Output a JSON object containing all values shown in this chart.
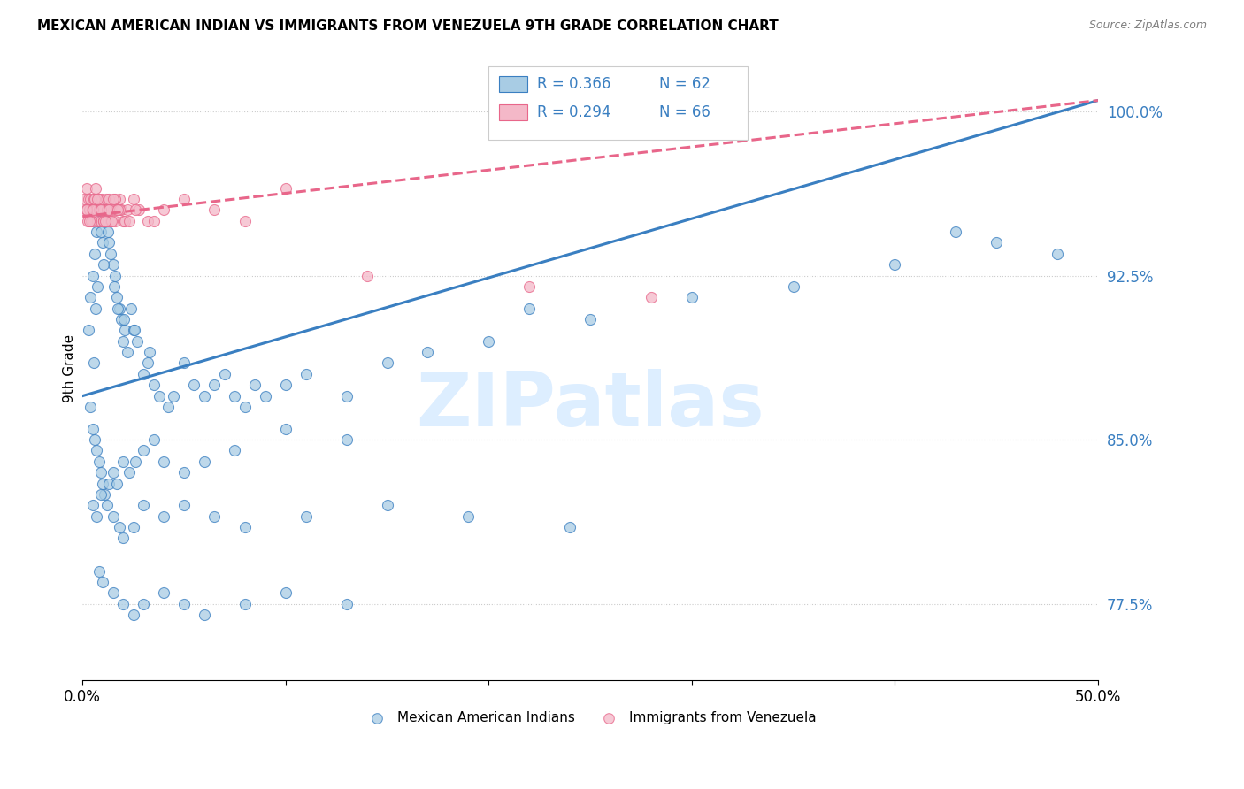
{
  "title": "MEXICAN AMERICAN INDIAN VS IMMIGRANTS FROM VENEZUELA 9TH GRADE CORRELATION CHART",
  "source": "Source: ZipAtlas.com",
  "ylabel": "9th Grade",
  "y_ticks": [
    77.5,
    85.0,
    92.5,
    100.0
  ],
  "y_tick_labels": [
    "77.5%",
    "85.0%",
    "92.5%",
    "100.0%"
  ],
  "x_min": 0.0,
  "x_max": 50.0,
  "y_min": 74.0,
  "y_max": 102.5,
  "legend_r1": "R = 0.366",
  "legend_n1": "N = 62",
  "legend_r2": "R = 0.294",
  "legend_n2": "N = 66",
  "color_blue": "#a8cce4",
  "color_pink": "#f4b8c8",
  "color_blue_line": "#3a7fc1",
  "color_pink_line": "#e8668a",
  "color_blue_text": "#3a7fc1",
  "watermark_text": "ZIPatlas",
  "watermark_color": "#ddeeff",
  "blue_line_x0": 0.0,
  "blue_line_y0": 87.0,
  "blue_line_x1": 50.0,
  "blue_line_y1": 100.5,
  "pink_line_x0": 0.0,
  "pink_line_y0": 95.2,
  "pink_line_x1": 50.0,
  "pink_line_y1": 100.5,
  "blue_x": [
    0.3,
    0.4,
    0.5,
    0.6,
    0.7,
    0.8,
    0.9,
    1.0,
    1.1,
    1.2,
    1.3,
    1.4,
    1.5,
    1.6,
    1.7,
    1.8,
    1.9,
    2.0,
    2.1,
    2.2,
    2.4,
    2.5,
    2.7,
    3.0,
    3.2,
    3.5,
    3.8,
    4.2,
    5.0,
    5.5,
    6.0,
    6.5,
    7.0,
    7.5,
    8.0,
    9.0,
    10.0,
    11.0,
    13.0,
    15.0,
    17.0,
    20.0,
    25.0,
    30.0,
    35.0,
    40.0,
    45.0,
    48.0,
    0.55,
    0.75,
    1.05,
    1.25,
    1.55,
    1.75,
    2.05,
    2.55,
    3.3,
    4.5,
    8.5,
    22.0,
    43.0,
    0.65
  ],
  "blue_y": [
    90.0,
    91.5,
    92.5,
    93.5,
    94.5,
    95.0,
    94.5,
    94.0,
    95.5,
    95.0,
    94.0,
    93.5,
    93.0,
    92.5,
    91.5,
    91.0,
    90.5,
    89.5,
    90.0,
    89.0,
    91.0,
    90.0,
    89.5,
    88.0,
    88.5,
    87.5,
    87.0,
    86.5,
    88.5,
    87.5,
    87.0,
    87.5,
    88.0,
    87.0,
    86.5,
    87.0,
    87.5,
    88.0,
    87.0,
    88.5,
    89.0,
    89.5,
    90.5,
    91.5,
    92.0,
    93.0,
    94.0,
    93.5,
    88.5,
    92.0,
    93.0,
    94.5,
    92.0,
    91.0,
    90.5,
    90.0,
    89.0,
    87.0,
    87.5,
    91.0,
    94.5,
    91.0
  ],
  "blue_low_x": [
    0.4,
    0.5,
    0.6,
    0.7,
    0.8,
    0.9,
    1.0,
    1.1,
    1.3,
    1.5,
    1.7,
    2.0,
    2.3,
    2.6,
    3.0,
    3.5,
    4.0,
    5.0,
    6.0,
    7.5,
    10.0,
    13.0
  ],
  "blue_low_y": [
    86.5,
    85.5,
    85.0,
    84.5,
    84.0,
    83.5,
    83.0,
    82.5,
    83.0,
    83.5,
    83.0,
    84.0,
    83.5,
    84.0,
    84.5,
    85.0,
    84.0,
    83.5,
    84.0,
    84.5,
    85.5,
    85.0
  ],
  "blue_very_low_x": [
    0.5,
    0.7,
    0.9,
    1.2,
    1.5,
    1.8,
    2.0,
    2.5,
    3.0,
    4.0,
    5.0,
    6.5,
    8.0,
    11.0,
    15.0,
    19.0,
    24.0
  ],
  "blue_very_low_y": [
    82.0,
    81.5,
    82.5,
    82.0,
    81.5,
    81.0,
    80.5,
    81.0,
    82.0,
    81.5,
    82.0,
    81.5,
    81.0,
    81.5,
    82.0,
    81.5,
    81.0
  ],
  "blue_lowest_x": [
    0.8,
    1.0,
    1.5,
    2.0,
    2.5,
    3.0,
    4.0,
    5.0,
    6.0,
    8.0,
    10.0,
    13.0
  ],
  "blue_lowest_y": [
    79.0,
    78.5,
    78.0,
    77.5,
    77.0,
    77.5,
    78.0,
    77.5,
    77.0,
    77.5,
    78.0,
    77.5
  ],
  "pink_x": [
    0.1,
    0.15,
    0.2,
    0.25,
    0.3,
    0.35,
    0.4,
    0.45,
    0.5,
    0.55,
    0.6,
    0.65,
    0.7,
    0.75,
    0.8,
    0.85,
    0.9,
    0.95,
    1.0,
    1.05,
    1.1,
    1.15,
    1.2,
    1.25,
    1.3,
    1.35,
    1.4,
    1.5,
    1.6,
    1.7,
    1.8,
    1.9,
    2.0,
    2.2,
    2.5,
    2.8,
    3.2,
    4.0,
    5.0,
    6.5,
    8.0,
    10.0,
    14.0,
    22.0,
    28.0,
    0.22,
    0.42,
    0.62,
    0.82,
    1.02,
    1.22,
    1.42,
    1.62,
    1.82,
    2.1,
    2.6,
    3.5,
    0.32,
    0.52,
    0.72,
    0.92,
    1.12,
    1.32,
    1.52,
    1.72,
    2.3
  ],
  "pink_y": [
    96.0,
    95.5,
    96.5,
    95.0,
    96.0,
    95.5,
    96.0,
    95.5,
    95.0,
    96.0,
    95.5,
    96.5,
    95.5,
    95.0,
    96.0,
    95.5,
    95.0,
    96.0,
    95.5,
    95.0,
    95.5,
    96.0,
    95.5,
    95.0,
    96.0,
    95.5,
    95.0,
    95.5,
    95.0,
    95.5,
    96.0,
    95.5,
    95.0,
    95.5,
    96.0,
    95.5,
    95.0,
    95.5,
    96.0,
    95.5,
    95.0,
    96.5,
    92.5,
    92.0,
    91.5,
    95.5,
    95.0,
    96.0,
    95.5,
    95.0,
    95.5,
    95.0,
    96.0,
    95.5,
    95.0,
    95.5,
    95.0,
    95.0,
    95.5,
    96.0,
    95.5,
    95.0,
    95.5,
    96.0,
    95.5,
    95.0
  ]
}
